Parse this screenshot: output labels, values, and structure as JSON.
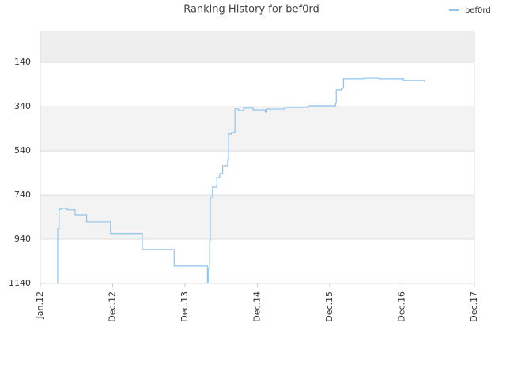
{
  "chart_data": {
    "type": "line",
    "title": "Ranking History for bef0rd",
    "x": [
      0.24,
      0.24,
      0.26,
      0.3,
      0.37,
      0.48,
      0.64,
      0.97,
      1.41,
      1.85,
      2.31,
      2.32,
      2.34,
      2.35,
      2.38,
      2.44,
      2.48,
      2.52,
      2.59,
      2.6,
      2.64,
      2.69,
      2.74,
      2.81,
      2.94,
      3.11,
      3.13,
      3.38,
      3.7,
      4.08,
      4.09,
      4.16,
      4.19,
      4.31,
      4.47,
      4.69,
      5.02,
      5.31
    ],
    "series": [
      {
        "name": "bef0rd",
        "color": "#8ec3ee",
        "values": [
          1140,
          893,
          804,
          800,
          807,
          829,
          861,
          914,
          986,
          1061,
          1136,
          1071,
          946,
          750,
          704,
          661,
          643,
          607,
          582,
          464,
          457,
          350,
          357,
          346,
          354,
          364,
          350,
          343,
          336,
          325,
          264,
          257,
          214,
          214,
          211,
          214,
          221,
          229
        ]
      }
    ],
    "xlim": [
      0,
      6
    ],
    "xticks": [
      {
        "value": 0,
        "label": "Jan.12"
      },
      {
        "value": 1,
        "label": "Dec.12"
      },
      {
        "value": 2,
        "label": "Dec.13"
      },
      {
        "value": 3,
        "label": "Dec.14"
      },
      {
        "value": 4,
        "label": "Dec.15"
      },
      {
        "value": 5,
        "label": "Dec.16"
      },
      {
        "value": 6,
        "label": "Dec.17"
      }
    ],
    "ylim": [
      1140,
      0
    ],
    "yticks": [
      140,
      340,
      540,
      740,
      940,
      1140
    ],
    "grid": true,
    "legend": "top-right"
  }
}
